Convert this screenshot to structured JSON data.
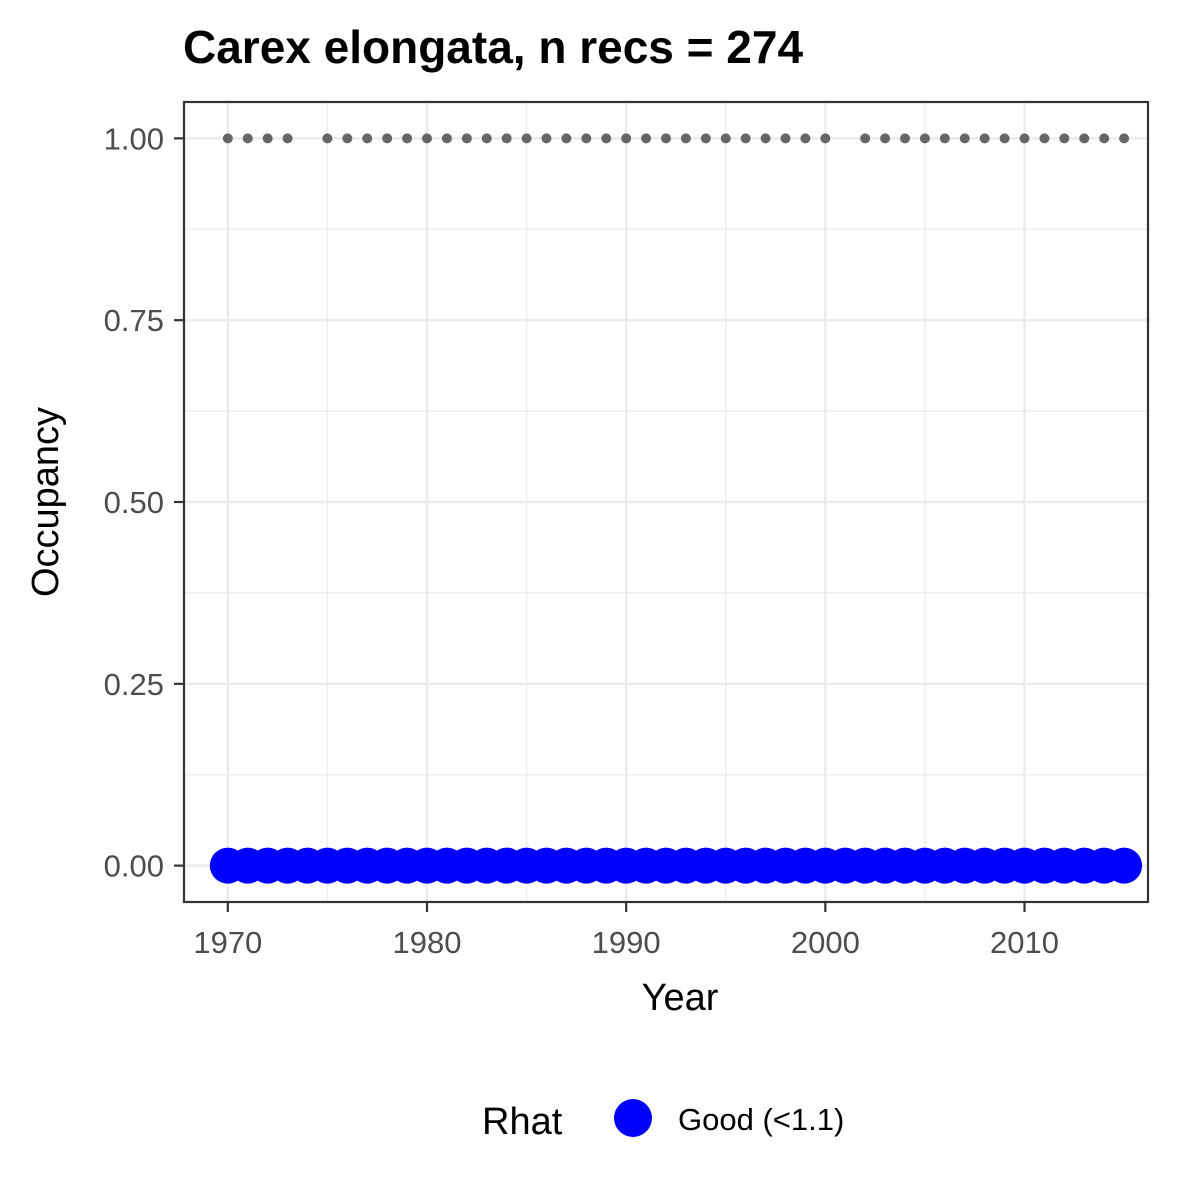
{
  "chart_data": {
    "type": "scatter",
    "title": "Carex elongata, n recs = 274",
    "xlabel": "Year",
    "ylabel": "Occupancy",
    "xlim": [
      1967.8,
      2016.2
    ],
    "ylim": [
      -0.05,
      1.05
    ],
    "x_ticks": [
      1970,
      1980,
      1990,
      2000,
      2010
    ],
    "x_tick_labels": [
      "1970",
      "1980",
      "1990",
      "2000",
      "2010"
    ],
    "y_ticks": [
      0,
      0.25,
      0.5,
      0.75,
      1
    ],
    "y_tick_labels": [
      "0.00",
      "0.25",
      "0.50",
      "0.75",
      "1.00"
    ],
    "grid": true,
    "legend": {
      "title": "Rhat",
      "position": "bottom",
      "entries": [
        {
          "label": "Good (<1.1)",
          "color": "#0000ff"
        }
      ]
    },
    "colors": {
      "occupancy_points": "#0000ff",
      "record_points": "#666666"
    },
    "series": [
      {
        "role": "occupancy",
        "rhat": "Good (<1.1)",
        "x": [
          1970,
          1971,
          1972,
          1973,
          1974,
          1975,
          1976,
          1977,
          1978,
          1979,
          1980,
          1981,
          1982,
          1983,
          1984,
          1985,
          1986,
          1987,
          1988,
          1989,
          1990,
          1991,
          1992,
          1993,
          1994,
          1995,
          1996,
          1997,
          1998,
          1999,
          2000,
          2001,
          2002,
          2003,
          2004,
          2005,
          2006,
          2007,
          2008,
          2009,
          2010,
          2011,
          2012,
          2013,
          2014,
          2015
        ],
        "y": [
          0,
          0,
          0,
          0,
          0,
          0,
          0,
          0,
          0,
          0,
          0,
          0,
          0,
          0,
          0,
          0,
          0,
          0,
          0,
          0,
          0,
          0,
          0,
          0,
          0,
          0,
          0,
          0,
          0,
          0,
          0,
          0,
          0,
          0,
          0,
          0,
          0,
          0,
          0,
          0,
          0,
          0,
          0,
          0,
          0,
          0
        ]
      },
      {
        "role": "records",
        "x": [
          1970,
          1971,
          1972,
          1973,
          1975,
          1976,
          1977,
          1978,
          1979,
          1980,
          1981,
          1982,
          1983,
          1984,
          1985,
          1986,
          1987,
          1988,
          1989,
          1990,
          1991,
          1992,
          1993,
          1994,
          1995,
          1996,
          1997,
          1998,
          1999,
          2000,
          2002,
          2003,
          2004,
          2005,
          2006,
          2007,
          2008,
          2009,
          2010,
          2011,
          2012,
          2013,
          2014,
          2015
        ],
        "y": [
          1,
          1,
          1,
          1,
          1,
          1,
          1,
          1,
          1,
          1,
          1,
          1,
          1,
          1,
          1,
          1,
          1,
          1,
          1,
          1,
          1,
          1,
          1,
          1,
          1,
          1,
          1,
          1,
          1,
          1,
          1,
          1,
          1,
          1,
          1,
          1,
          1,
          1,
          1,
          1,
          1,
          1,
          1,
          1
        ]
      }
    ]
  }
}
